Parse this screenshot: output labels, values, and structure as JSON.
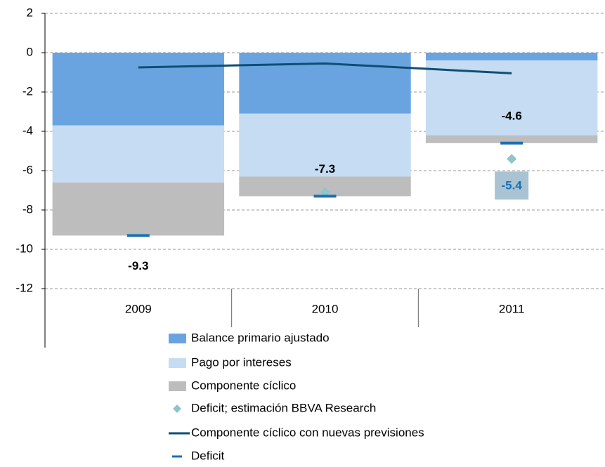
{
  "chart_data": {
    "type": "stacked-bar",
    "categories": [
      "2009",
      "2010",
      "2011"
    ],
    "ylim": [
      -15,
      2
    ],
    "yticks": [
      2,
      0,
      -2,
      -4,
      -6,
      -8,
      -10,
      -12
    ],
    "grid": true,
    "series": [
      {
        "name": "Balance primario ajustado",
        "color": "#6aa4e0",
        "values": [
          -3.7,
          -3.1,
          -0.4
        ]
      },
      {
        "name": "Pago por intereses",
        "color": "#c5dcf3",
        "values": [
          -2.9,
          -3.2,
          -3.8
        ]
      },
      {
        "name": "Componente cíclico",
        "color": "#bdbdbd",
        "values": [
          -2.7,
          -1.0,
          -0.4
        ]
      },
      {
        "name": "Deficit; estimación BBVA Research",
        "type": "scatter",
        "color": "#8fc4c9",
        "values": [
          null,
          -7.1,
          -5.4
        ],
        "value_labels": [
          null,
          null,
          "-5.4"
        ]
      },
      {
        "name": "Componente cíclico con nuevas previsiones",
        "type": "line",
        "color": "#0d4f73",
        "values": [
          -0.75,
          -0.55,
          -1.05
        ]
      },
      {
        "name": "Deficit",
        "type": "dash",
        "color": "#1a6fb5",
        "values": [
          -9.3,
          -7.3,
          -4.6
        ]
      }
    ]
  }
}
